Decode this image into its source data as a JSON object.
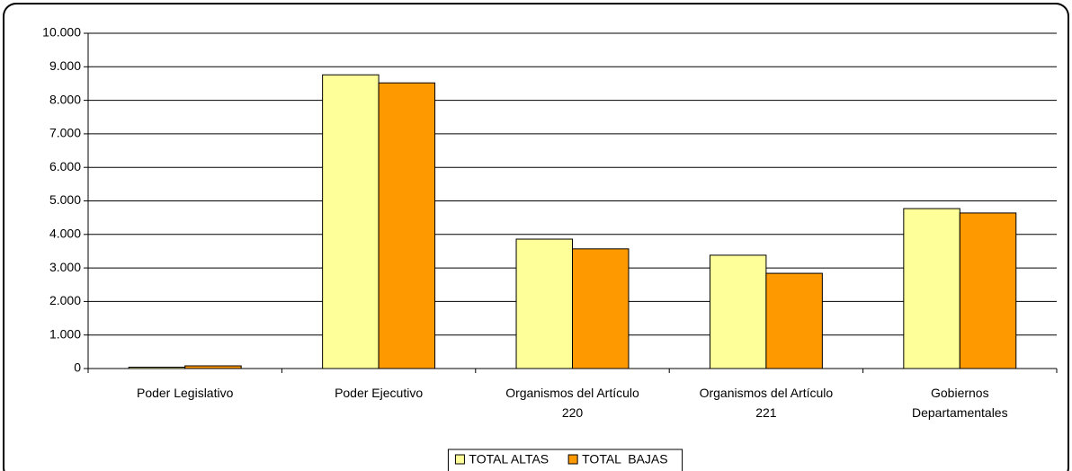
{
  "chart_data": {
    "type": "bar",
    "categories": [
      "Poder Legislativo",
      "Poder Ejecutivo",
      "Organismos del Artículo 220",
      "Organismos del Artículo 221",
      "Gobiernos Departamentales"
    ],
    "series": [
      {
        "name": "TOTAL ALTAS",
        "color": "#ffff99",
        "values": [
          40,
          8760,
          3860,
          3380,
          4770
        ]
      },
      {
        "name": "TOTAL  BAJAS",
        "color": "#ff9900",
        "values": [
          80,
          8520,
          3570,
          2840,
          4640
        ]
      }
    ],
    "ylim": [
      0,
      10000
    ],
    "yticks": [
      0,
      {
        "value": 1000,
        "label": "1.000"
      },
      {
        "value": 2000,
        "label": "2.000"
      },
      {
        "value": 3000,
        "label": "3.000"
      },
      {
        "value": 4000,
        "label": "4.000"
      },
      {
        "value": 5000,
        "label": "5.000"
      },
      {
        "value": 6000,
        "label": "6.000"
      },
      {
        "value": 7000,
        "label": "7.000"
      },
      {
        "value": 8000,
        "label": "8.000"
      },
      {
        "value": 9000,
        "label": "9.000"
      },
      {
        "value": 10000,
        "label": "10.000"
      }
    ],
    "grid": true,
    "legend": "bottom"
  }
}
